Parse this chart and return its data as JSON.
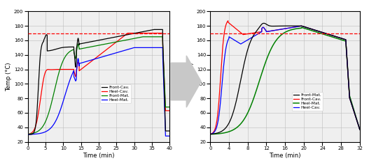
{
  "chart1": {
    "xlabel": "Time (min)",
    "ylabel": "Temp (°C)",
    "xlim": [
      0,
      40
    ],
    "ylim": [
      20,
      200
    ],
    "xticks": [
      0,
      5,
      10,
      15,
      20,
      25,
      30,
      35,
      40
    ],
    "yticks": [
      20,
      40,
      60,
      80,
      100,
      120,
      140,
      160,
      180,
      200
    ],
    "dashed_line_y": 170,
    "legend": [
      "Front-Cav.",
      "Heel-Cav.",
      "Front-Mat.",
      "Heel-Mat."
    ]
  },
  "chart2": {
    "xlabel": "Time (min)",
    "ylabel": "Temp (°C)",
    "xlim": [
      0,
      32
    ],
    "ylim": [
      20,
      200
    ],
    "xticks": [
      0,
      4,
      8,
      12,
      16,
      20,
      24,
      28,
      32
    ],
    "yticks": [
      20,
      40,
      60,
      80,
      100,
      120,
      140,
      160,
      180,
      200
    ],
    "dashed_line_y": 170,
    "legend": [
      "Front-Mat.",
      "Front-Cav.",
      "Heel-Mat.",
      "Heel-Cav."
    ]
  },
  "bg_color": "#efefef",
  "grid_color": "#bbbbbb"
}
